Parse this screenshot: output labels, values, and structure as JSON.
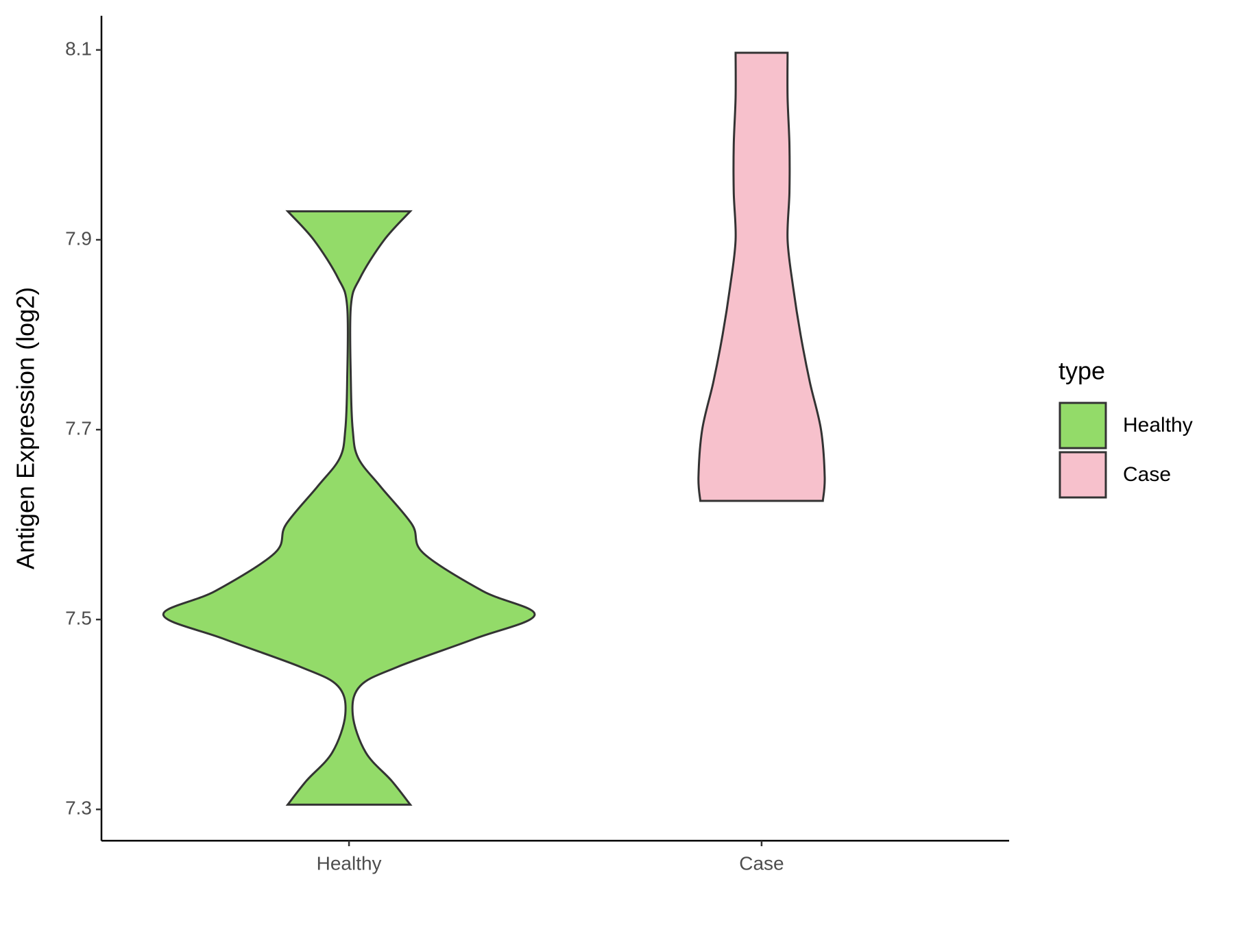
{
  "chart_data": {
    "type": "violin",
    "y_label": "Antigen Expression (log2)",
    "categories": [
      "Healthy",
      "Case"
    ],
    "legend_title": "type",
    "legend_position": "right",
    "ylim": [
      7.267,
      8.136
    ],
    "yticks": [
      7.3,
      7.5,
      7.7,
      7.9,
      8.1
    ],
    "grid": false,
    "series": [
      {
        "name": "Healthy",
        "color": "#93db69",
        "y": [
          7.305,
          7.33,
          7.36,
          7.4,
          7.43,
          7.45,
          7.48,
          7.505,
          7.53,
          7.57,
          7.6,
          7.64,
          7.67,
          7.7,
          7.75,
          7.83,
          7.86,
          7.9,
          7.93
        ],
        "density": [
          0.33,
          0.23,
          0.09,
          0.02,
          0.06,
          0.26,
          0.68,
          1.0,
          0.72,
          0.4,
          0.34,
          0.17,
          0.05,
          0.02,
          0.01,
          0.01,
          0.06,
          0.19,
          0.33
        ]
      },
      {
        "name": "Case",
        "color": "#f7c1cc",
        "y": [
          7.625,
          7.65,
          7.7,
          7.75,
          7.8,
          7.85,
          7.9,
          7.95,
          8.0,
          8.05,
          8.097
        ],
        "density": [
          0.33,
          0.34,
          0.32,
          0.26,
          0.21,
          0.17,
          0.14,
          0.15,
          0.15,
          0.14,
          0.14
        ]
      }
    ]
  }
}
